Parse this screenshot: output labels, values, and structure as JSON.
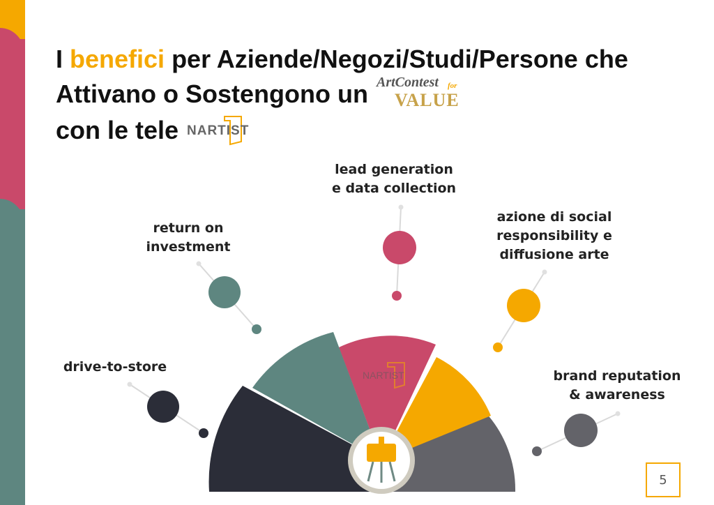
{
  "title": {
    "word_before": "I ",
    "highlight": "benefici",
    "line1_rest": " per Aziende/Negozi/Studi/Persone che",
    "line2": "Attivano o Sostengono un",
    "line3": "con le tele"
  },
  "logos": {
    "artcontest_top": "ArtContest",
    "artcontest_for": "for",
    "artcontest_bottom": "VALUE",
    "nartist": "NARTIST"
  },
  "benefits": [
    {
      "label": "drive-to-store",
      "color": "#2b2d38"
    },
    {
      "label": "return on\ninvestment",
      "color": "#5e8680"
    },
    {
      "label": "lead generation\ne data collection",
      "color": "#c9496a"
    },
    {
      "label": "azione di social\nresponsibility e\ndiffusione arte",
      "color": "#f5a800"
    },
    {
      "label": "brand reputation\n& awareness",
      "color": "#636369"
    }
  ],
  "center_logo": "NARTIST",
  "page_number": "5",
  "colors": {
    "accent": "#f5a800",
    "red": "#c9496a",
    "teal": "#5e8680",
    "dark": "#2b2d38",
    "gray": "#636369"
  }
}
